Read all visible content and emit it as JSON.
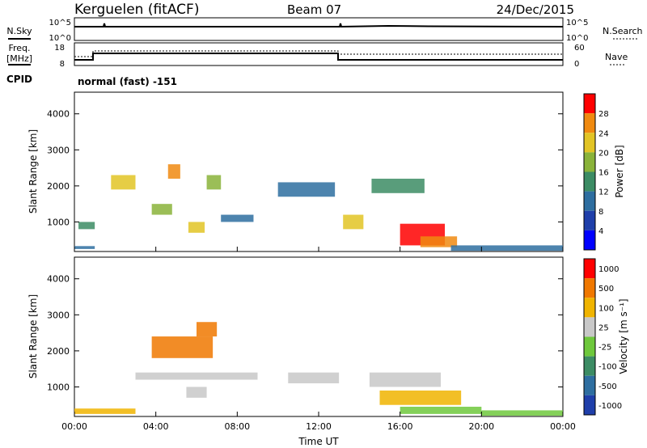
{
  "header": {
    "station": "Kerguelen (fitACF)",
    "beam": "Beam 07",
    "date": "24/Dec/2015"
  },
  "top_panels": {
    "nsky_label": "N.Sky",
    "nsky_ticks": [
      "10^5",
      "10^0"
    ],
    "nsearch_label": "N.Search",
    "nsearch_ticks": [
      "10^5",
      "10^0"
    ],
    "freq_label": "Freq.",
    "freq_unit": "[MHz]",
    "freq_ticks": [
      "18",
      "8"
    ],
    "nave_label": "Nave",
    "nave_ticks": [
      "60",
      "0"
    ],
    "cpid_label": "CPID",
    "cpid_value": "normal (fast) -151"
  },
  "chart_data": [
    {
      "type": "heatmap",
      "name": "power",
      "ylabel": "Slant Range [km]",
      "yticks": [
        "4000",
        "3000",
        "2000",
        "1000"
      ],
      "ylim": [
        180,
        4600
      ],
      "colorbar_label": "Power [dB]",
      "colorbar_ticks": [
        "28",
        "24",
        "20",
        "16",
        "12",
        "8",
        "4"
      ],
      "colors": [
        "#0000ff",
        "#1f3faa",
        "#2e6ea0",
        "#3c8c64",
        "#8ab33a",
        "#e2c425",
        "#f08a10",
        "#ff0000"
      ],
      "regions": [
        {
          "x": [
            0.0,
            1.0
          ],
          "y": [
            250,
            330
          ],
          "level": 2
        },
        {
          "x": [
            0.2,
            1.0
          ],
          "y": [
            800,
            1000
          ],
          "level": 3
        },
        {
          "x": [
            1.8,
            3.0
          ],
          "y": [
            1900,
            2300
          ],
          "level": 5
        },
        {
          "x": [
            3.8,
            4.8
          ],
          "y": [
            1200,
            1500
          ],
          "level": 4
        },
        {
          "x": [
            4.6,
            5.2
          ],
          "y": [
            2200,
            2600
          ],
          "level": 6
        },
        {
          "x": [
            5.6,
            6.4
          ],
          "y": [
            700,
            1000
          ],
          "level": 5
        },
        {
          "x": [
            6.5,
            7.2
          ],
          "y": [
            1900,
            2300
          ],
          "level": 4
        },
        {
          "x": [
            7.2,
            8.8
          ],
          "y": [
            1000,
            1200
          ],
          "level": 2
        },
        {
          "x": [
            13.2,
            14.2
          ],
          "y": [
            800,
            1200
          ],
          "level": 5
        },
        {
          "x": [
            14.6,
            17.2
          ],
          "y": [
            1800,
            2200
          ],
          "level": 3
        },
        {
          "x": [
            16.0,
            18.2
          ],
          "y": [
            350,
            950
          ],
          "level": 7
        },
        {
          "x": [
            17.0,
            18.8
          ],
          "y": [
            300,
            600
          ],
          "level": 6
        },
        {
          "x": [
            18.5,
            24.0
          ],
          "y": [
            200,
            350
          ],
          "level": 2
        },
        {
          "x": [
            10.0,
            12.8
          ],
          "y": [
            1700,
            2100
          ],
          "level": 2
        }
      ]
    },
    {
      "type": "heatmap",
      "name": "velocity",
      "ylabel": "Slant Range [km]",
      "yticks": [
        "4000",
        "3000",
        "2000",
        "1000"
      ],
      "ylim": [
        180,
        4600
      ],
      "xlabel": "Time UT",
      "xticks": [
        "00:00",
        "04:00",
        "08:00",
        "12:00",
        "16:00",
        "20:00",
        "00:00"
      ],
      "xlim": [
        0,
        24
      ],
      "colorbar_label": "Velocity [m s⁻¹]",
      "colorbar_ticks": [
        "1000",
        "500",
        "100",
        "25",
        "-25",
        "-100",
        "-500",
        "-1000"
      ],
      "colors": [
        "#1f3faa",
        "#2e6ea0",
        "#3c8c64",
        "#6ec83c",
        "#c8c8c8",
        "#f0b400",
        "#f07800",
        "#ff0000"
      ],
      "regions": [
        {
          "x": [
            3.8,
            6.8
          ],
          "y": [
            1800,
            2400
          ],
          "level": 6
        },
        {
          "x": [
            6.0,
            7.0
          ],
          "y": [
            2400,
            2800
          ],
          "level": 6
        },
        {
          "x": [
            3.0,
            9.0
          ],
          "y": [
            1200,
            1400
          ],
          "level": 4
        },
        {
          "x": [
            5.5,
            6.5
          ],
          "y": [
            700,
            1000
          ],
          "level": 4
        },
        {
          "x": [
            10.5,
            13.0
          ],
          "y": [
            1100,
            1400
          ],
          "level": 4
        },
        {
          "x": [
            14.5,
            18.0
          ],
          "y": [
            1000,
            1400
          ],
          "level": 4
        },
        {
          "x": [
            15.0,
            19.0
          ],
          "y": [
            500,
            900
          ],
          "level": 5
        },
        {
          "x": [
            16.0,
            20.0
          ],
          "y": [
            250,
            450
          ],
          "level": 3
        },
        {
          "x": [
            20.0,
            24.0
          ],
          "y": [
            200,
            350
          ],
          "level": 3
        },
        {
          "x": [
            0.0,
            3.0
          ],
          "y": [
            250,
            400
          ],
          "level": 5
        }
      ]
    }
  ]
}
